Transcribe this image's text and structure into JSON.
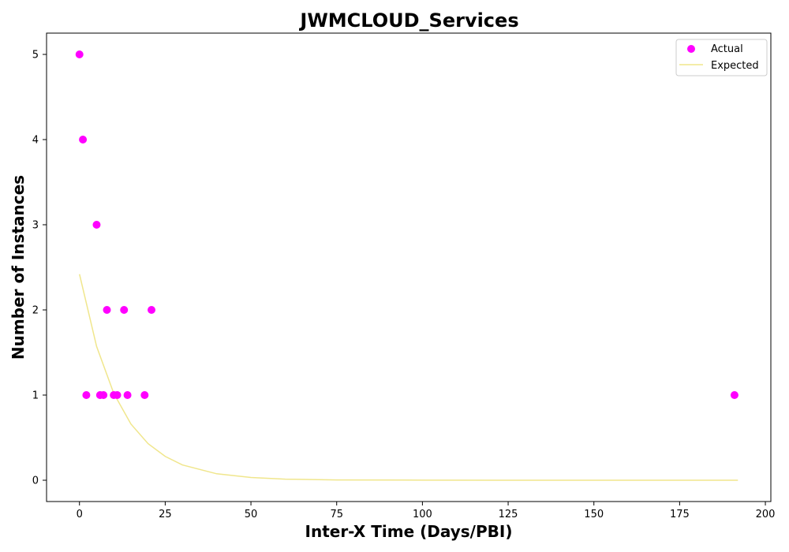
{
  "chart_data": {
    "type": "scatter",
    "title": "JWMCLOUD_Services",
    "xlabel": "Inter-X Time (Days/PBI)",
    "ylabel": "Number of Instances",
    "xlim": [
      -9.6,
      201.6
    ],
    "ylim": [
      -0.25,
      5.25
    ],
    "xticks": [
      0,
      25,
      50,
      75,
      100,
      125,
      150,
      175,
      200
    ],
    "yticks": [
      0,
      1,
      2,
      3,
      4,
      5
    ],
    "grid": false,
    "legend_position": "top-right",
    "series": [
      {
        "name": "Actual",
        "kind": "scatter",
        "color": "#ff00ff",
        "points": [
          {
            "x": 0,
            "y": 5
          },
          {
            "x": 1,
            "y": 4
          },
          {
            "x": 2,
            "y": 1
          },
          {
            "x": 5,
            "y": 3
          },
          {
            "x": 6,
            "y": 1
          },
          {
            "x": 7,
            "y": 1
          },
          {
            "x": 8,
            "y": 2
          },
          {
            "x": 10,
            "y": 1
          },
          {
            "x": 11,
            "y": 1
          },
          {
            "x": 13,
            "y": 2
          },
          {
            "x": 14,
            "y": 1
          },
          {
            "x": 19,
            "y": 1
          },
          {
            "x": 21,
            "y": 2
          },
          {
            "x": 191,
            "y": 1
          }
        ]
      },
      {
        "name": "Expected",
        "kind": "line",
        "color": "#f0e68c",
        "points": [
          {
            "x": 0,
            "y": 2.42
          },
          {
            "x": 5,
            "y": 1.57
          },
          {
            "x": 10,
            "y": 1.02
          },
          {
            "x": 15,
            "y": 0.66
          },
          {
            "x": 20,
            "y": 0.43
          },
          {
            "x": 25,
            "y": 0.28
          },
          {
            "x": 30,
            "y": 0.18
          },
          {
            "x": 40,
            "y": 0.076
          },
          {
            "x": 50,
            "y": 0.032
          },
          {
            "x": 60,
            "y": 0.013
          },
          {
            "x": 75,
            "y": 0.004
          },
          {
            "x": 100,
            "y": 0.001
          },
          {
            "x": 125,
            "y": 0.0
          },
          {
            "x": 150,
            "y": 0.0
          },
          {
            "x": 175,
            "y": 0.0
          },
          {
            "x": 192,
            "y": 0.0
          }
        ]
      }
    ]
  }
}
